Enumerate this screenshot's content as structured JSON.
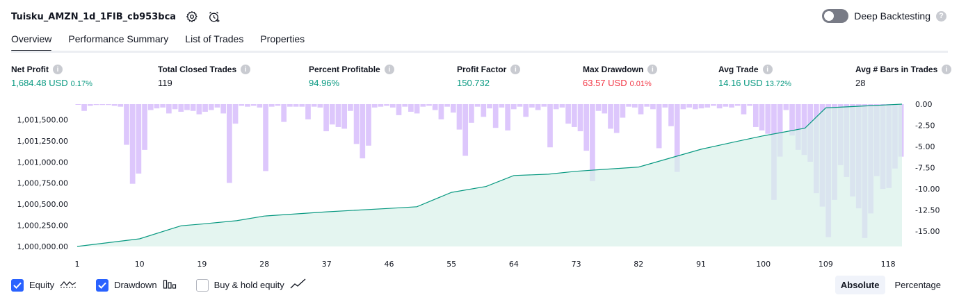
{
  "header": {
    "title": "Tuisku_AMZN_1d_1FIB_cb953bca",
    "settings_icon": "gear-icon",
    "snapshot_icon": "alarm-clock-add-icon"
  },
  "deep_backtesting": {
    "label": "Deep Backtesting",
    "enabled": false,
    "help": "?"
  },
  "tabs": [
    {
      "label": "Overview",
      "active": true
    },
    {
      "label": "Performance Summary",
      "active": false
    },
    {
      "label": "List of Trades",
      "active": false
    },
    {
      "label": "Properties",
      "active": false
    }
  ],
  "metrics": [
    {
      "label": "Net Profit",
      "value": "1,684.48 USD",
      "sub": "0.17%",
      "tone": "green"
    },
    {
      "label": "Total Closed Trades",
      "value": "119",
      "sub": "",
      "tone": "neutral"
    },
    {
      "label": "Percent Profitable",
      "value": "94.96%",
      "sub": "",
      "tone": "green"
    },
    {
      "label": "Profit Factor",
      "value": "150.732",
      "sub": "",
      "tone": "green"
    },
    {
      "label": "Max Drawdown",
      "value": "63.57 USD",
      "sub": "0.01%",
      "tone": "red"
    },
    {
      "label": "Avg Trade",
      "value": "14.16 USD",
      "sub": "13.72%",
      "tone": "green"
    },
    {
      "label": "Avg # Bars in Trades",
      "value": "28",
      "sub": "",
      "tone": "neutral"
    }
  ],
  "info_glyph": "i",
  "colors": {
    "equity_line": "#089981",
    "equity_fill": "#d8f1ea",
    "drawdown_bar": "#d7bdfb",
    "accent": "#2962ff",
    "positive": "#089981",
    "negative": "#f23645"
  },
  "chart_data": {
    "type": "area",
    "x_ticks": [
      "1",
      "10",
      "19",
      "28",
      "37",
      "46",
      "55",
      "64",
      "73",
      "82",
      "91",
      "100",
      "109",
      "118"
    ],
    "left_axis": {
      "ticks": [
        "1,001,500.00",
        "1,001,250.00",
        "1,001,000.00",
        "1,000,750.00",
        "1,000,500.00",
        "1,000,250.00",
        "1,000,000.00"
      ],
      "range": [
        1000000,
        1001684.48
      ]
    },
    "right_axis": {
      "ticks": [
        "0.00",
        "-2.50",
        "-5.00",
        "-7.50",
        "-10.00",
        "-12.50",
        "-15.00"
      ],
      "range": [
        -16.8,
        0
      ]
    },
    "series": [
      {
        "name": "Equity",
        "type": "area",
        "x": [
          1,
          10,
          16,
          19,
          24,
          28,
          37,
          46,
          50,
          55,
          60,
          64,
          69,
          73,
          82,
          91,
          96,
          100,
          106,
          109,
          120
        ],
        "values": [
          1000000,
          1000090,
          1000245,
          1000265,
          1000305,
          1000360,
          1000410,
          1000450,
          1000470,
          1000640,
          1000710,
          1000840,
          1000855,
          1000890,
          1000940,
          1001150,
          1001240,
          1001310,
          1001400,
          1001640,
          1001684.48
        ]
      },
      {
        "name": "Drawdown",
        "type": "bar",
        "values": [
          0,
          -0.8,
          -0.2,
          -0.1,
          -0.1,
          -0.1,
          -0.2,
          -0.3,
          -4.8,
          -9.4,
          -8.2,
          -5.4,
          -0.7,
          -0.5,
          -0.4,
          -1.1,
          -0.6,
          -0.9,
          -0.7,
          -0.8,
          -1.2,
          -0.9,
          -0.7,
          -0.4,
          -1.1,
          -9.3,
          -2.3,
          -0.2,
          -0.3,
          -0.2,
          -0.4,
          -7.9,
          -0.3,
          -0.2,
          -2.1,
          -0.3,
          -0.3,
          -0.3,
          -1.8,
          -0.3,
          -0.4,
          -3.2,
          -2.4,
          -2.7,
          -2.9,
          -0.8,
          -4.7,
          -6.4,
          -4.9,
          -0.4,
          -0.3,
          -0.2,
          -0.4,
          -1.3,
          -0.3,
          -0.9,
          -1.1,
          -0.3,
          -0.2,
          -0.7,
          -1.8,
          -0.3,
          -1.0,
          -3.0,
          -6.1,
          -2.2,
          -0.3,
          -1.5,
          -0.5,
          -2.8,
          -0.4,
          -3.1,
          -0.6,
          -0.3,
          -1.5,
          -0.4,
          -0.7,
          -0.3,
          -5.1,
          -0.6,
          -0.4,
          -2.3,
          -2.7,
          -3.2,
          -5.5,
          -9.1,
          -0.8,
          -1.1,
          -2.9,
          -3.4,
          -1.6,
          -0.3,
          -0.4,
          -1.2,
          -0.3,
          -0.6,
          -5.2,
          -0.4,
          -2.6,
          -8.0,
          -0.6,
          -0.4,
          -0.6,
          -0.5,
          -0.4,
          -0.2,
          -0.5,
          -0.3,
          -0.4,
          -0.2,
          -1.2,
          -0.2,
          -2.7,
          -3.1,
          -3.5,
          -11.3,
          -6.2,
          -0.7,
          -3.7,
          -5.4,
          -6.0,
          -6.8,
          -10.5,
          -12.1,
          -15.7,
          -11.3,
          -7.2,
          -8.6,
          -10.9,
          -12.3,
          -15.8,
          -12.9,
          -8.5,
          -10.0,
          -9.9,
          -7.6,
          -6.2
        ],
        "ylim": [
          -16.8,
          0
        ]
      }
    ],
    "xlim": [
      0.7,
      120.3
    ]
  },
  "legend": [
    {
      "label": "Equity",
      "checked": true,
      "icon": "equity-line-icon"
    },
    {
      "label": "Drawdown",
      "checked": true,
      "icon": "drawdown-bars-icon"
    },
    {
      "label": "Buy & hold equity",
      "checked": false,
      "icon": "buy-hold-line-icon"
    }
  ],
  "scale": {
    "absolute_label": "Absolute",
    "percentage_label": "Percentage",
    "selected": "Absolute"
  }
}
